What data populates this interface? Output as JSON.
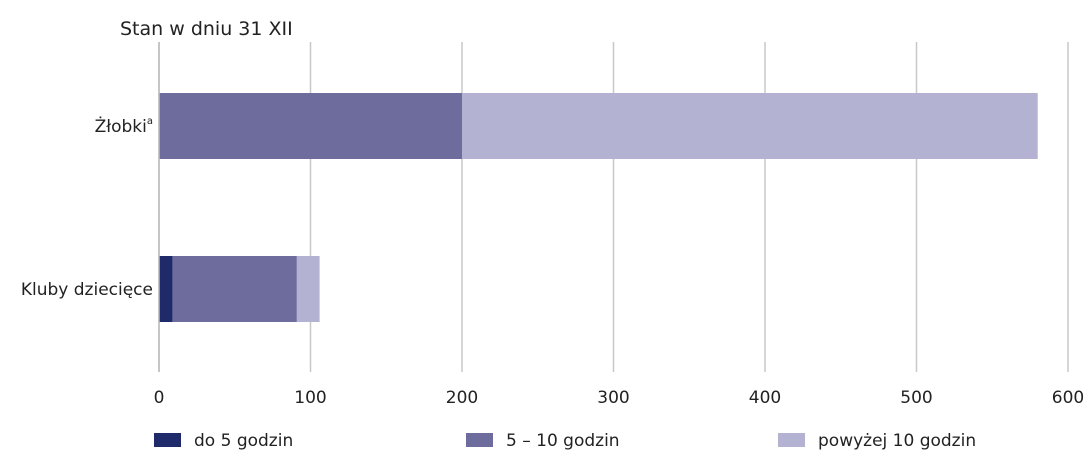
{
  "note": "Stan w dniu 31 XII",
  "chart_data": {
    "type": "bar",
    "orientation": "horizontal",
    "stacked": true,
    "categories": [
      {
        "label": "Żłobki",
        "superscript": "a"
      },
      {
        "label": "Kluby dziecięce",
        "superscript": ""
      }
    ],
    "series": [
      {
        "name": "do 5 godzin",
        "color": "#1f2a6b",
        "values": [
          0,
          9
        ]
      },
      {
        "name": "5 – 10 godzin",
        "color": "#6e6c9d",
        "values": [
          200,
          82
        ]
      },
      {
        "name": "powyżej 10 godzin",
        "color": "#b3b2d3",
        "values": [
          380,
          15
        ]
      }
    ],
    "xlim": [
      0,
      600
    ],
    "xticks": [
      0,
      100,
      200,
      300,
      400,
      500,
      600
    ],
    "grid": true,
    "legend_position": "bottom"
  }
}
